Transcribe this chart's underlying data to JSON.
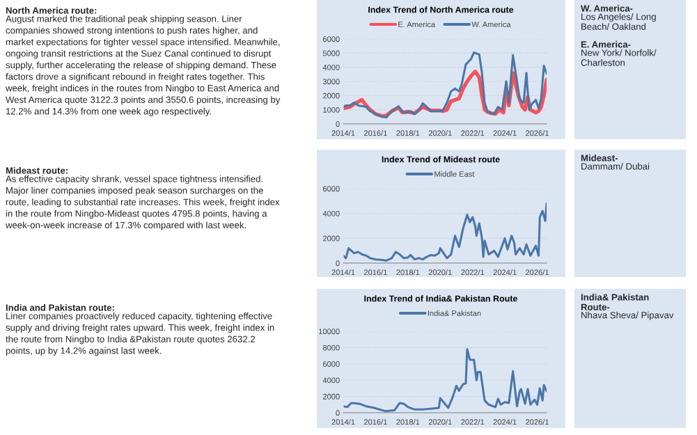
{
  "chart_data": [
    {
      "type": "line",
      "title": "Index Trend of North America route",
      "series": [
        {
          "name": "E. America",
          "color": "#f4525a",
          "x": [
            "2014-01",
            "2014-06",
            "2014-09",
            "2015-03",
            "2015-06",
            "2015-09",
            "2016-01",
            "2016-06",
            "2016-09",
            "2017-01",
            "2017-06",
            "2017-09",
            "2018-01",
            "2018-06",
            "2018-12",
            "2019-06",
            "2019-12",
            "2020-03",
            "2020-06",
            "2020-09",
            "2020-12",
            "2021-03",
            "2021-06",
            "2021-09",
            "2021-12",
            "2022-03",
            "2022-06",
            "2022-08",
            "2022-10",
            "2022-12",
            "2023-03",
            "2023-06",
            "2023-09",
            "2023-12",
            "2024-02",
            "2024-04",
            "2024-07",
            "2024-09",
            "2024-11",
            "2025-02",
            "2025-04",
            "2025-06",
            "2025-08",
            "2025-10",
            "2025-12",
            "2026-02",
            "2026-04",
            "2026-06",
            "2026-08"
          ],
          "values": [
            1100,
            1200,
            1400,
            1700,
            1300,
            1000,
            700,
            550,
            600,
            900,
            1150,
            800,
            850,
            750,
            1200,
            950,
            950,
            900,
            1000,
            1600,
            1700,
            1800,
            2500,
            3000,
            3400,
            3700,
            3300,
            2000,
            1000,
            850,
            750,
            700,
            1000,
            800,
            2500,
            1300,
            3600,
            2800,
            2000,
            1200,
            1000,
            1900,
            1000,
            900,
            800,
            900,
            1200,
            2000,
            3122.3
          ]
        },
        {
          "name": "W. America",
          "color": "#4a76a8",
          "x": [
            "2014-01",
            "2014-03",
            "2014-06",
            "2014-09",
            "2014-12",
            "2015-03",
            "2015-06",
            "2015-09",
            "2015-12",
            "2016-03",
            "2016-06",
            "2016-09",
            "2016-12",
            "2017-03",
            "2017-06",
            "2017-09",
            "2017-12",
            "2018-03",
            "2018-06",
            "2018-09",
            "2018-12",
            "2019-03",
            "2019-06",
            "2019-09",
            "2019-12",
            "2020-03",
            "2020-06",
            "2020-09",
            "2020-12",
            "2021-03",
            "2021-05",
            "2021-08",
            "2021-12",
            "2022-02",
            "2022-06",
            "2022-08",
            "2022-10",
            "2022-12",
            "2023-03",
            "2023-05",
            "2023-08",
            "2023-11",
            "2024-02",
            "2024-04",
            "2024-07",
            "2024-10",
            "2024-12",
            "2025-03",
            "2025-05",
            "2025-07",
            "2025-09",
            "2025-12",
            "2026-02",
            "2026-04",
            "2026-06",
            "2026-08"
          ],
          "values": [
            1200,
            1300,
            1300,
            1500,
            1300,
            1250,
            1200,
            900,
            750,
            600,
            500,
            450,
            800,
            1000,
            1250,
            850,
            800,
            900,
            700,
            950,
            1450,
            1200,
            900,
            900,
            900,
            950,
            1500,
            2300,
            2500,
            2300,
            2800,
            4200,
            4600,
            5050,
            4900,
            3600,
            1500,
            900,
            750,
            700,
            1200,
            1000,
            3000,
            1500,
            4850,
            3000,
            1700,
            1500,
            3600,
            1000,
            1400,
            1700,
            1100,
            1800,
            4100,
            3550.6
          ]
        }
      ],
      "xlim": [
        "2014-01",
        "2026-08"
      ],
      "xticks": [
        {
          "value": "2014-01",
          "label": "2014/1"
        },
        {
          "value": "2016-01",
          "label": "2016/1"
        },
        {
          "value": "2018-01",
          "label": "2018/1"
        },
        {
          "value": "2020-01",
          "label": "2020/1"
        },
        {
          "value": "2022-01",
          "label": "2022/1"
        },
        {
          "value": "2024-01",
          "label": "2024/1"
        },
        {
          "value": "2026-01",
          "label": "2026/1"
        }
      ],
      "ylim": [
        0,
        6000
      ],
      "yticks": [
        0,
        1000,
        2000,
        3000,
        4000,
        5000,
        6000
      ],
      "grid": "y",
      "legend": "top",
      "annotations": [
        "North America route:",
        "August marked the traditional peak shipping season. Liner companies showed strong intentions to push rates higher, and market expectations for tighter vessel space intensified. Meanwhile, ongoing transit restrictions at the Suez Canal continued to disrupt supply, further accelerating the release of shipping demand. These factors drove a significant rebound in freight rates together. This week, freight indices in the routes from Ningbo to East America and West America quote 3122.3 points and 3550.6 points, increasing by 12.2% and 14.3% from one week ago respectively.",
        "W. America-",
        "Los Angeles/ Long Beach/ Oakland",
        "E. America-",
        "New York/ Norfolk/ Charleston"
      ]
    },
    {
      "type": "line",
      "title": "Index Trend of Mideast route",
      "series": [
        {
          "name": "Middle East",
          "color": "#4a76a8",
          "x": [
            "2014-01",
            "2014-03",
            "2014-05",
            "2014-09",
            "2014-12",
            "2015-03",
            "2015-06",
            "2015-09",
            "2016-01",
            "2016-06",
            "2016-09",
            "2017-01",
            "2017-04",
            "2017-07",
            "2017-10",
            "2018-01",
            "2018-03",
            "2018-06",
            "2018-09",
            "2018-12",
            "2019-03",
            "2019-06",
            "2019-09",
            "2019-12",
            "2020-01",
            "2020-06",
            "2020-09",
            "2020-12",
            "2021-03",
            "2021-06",
            "2021-09",
            "2021-11",
            "2022-01",
            "2022-03",
            "2022-04",
            "2022-06",
            "2022-08",
            "2022-09",
            "2022-10",
            "2023-01",
            "2023-05",
            "2023-08",
            "2024-01",
            "2024-03",
            "2024-06",
            "2024-08",
            "2024-09",
            "2024-12",
            "2025-03",
            "2025-05",
            "2025-08",
            "2025-12",
            "2026-02",
            "2026-03",
            "2026-05",
            "2026-07",
            "2026-08"
          ],
          "values": [
            600,
            400,
            1200,
            800,
            900,
            700,
            600,
            400,
            300,
            250,
            200,
            400,
            900,
            700,
            400,
            450,
            650,
            300,
            400,
            300,
            500,
            650,
            600,
            800,
            1200,
            400,
            700,
            2200,
            1300,
            2800,
            3900,
            3300,
            3700,
            3000,
            2200,
            3200,
            2000,
            500,
            1800,
            700,
            1000,
            500,
            2000,
            1100,
            2200,
            1600,
            700,
            1200,
            700,
            1500,
            600,
            1400,
            600,
            3700,
            4200,
            3400,
            4795.8
          ]
        }
      ],
      "xlim": [
        "2014-01",
        "2026-08"
      ],
      "xticks": [
        {
          "value": "2014-01",
          "label": "2014/1"
        },
        {
          "value": "2016-01",
          "label": "2016/1"
        },
        {
          "value": "2018-01",
          "label": "2018/1"
        },
        {
          "value": "2020-01",
          "label": "2020/1"
        },
        {
          "value": "2022-01",
          "label": "2022/1"
        },
        {
          "value": "2024-01",
          "label": "2024/1"
        },
        {
          "value": "2026-01",
          "label": "2026/1"
        }
      ],
      "ylim": [
        0,
        6000
      ],
      "yticks": [
        0,
        2000,
        4000,
        6000
      ],
      "grid": "y",
      "legend": "top",
      "annotations": [
        "Mideast route:",
        "As effective capacity shrank, vessel space tightness intensified. Major liner companies imposed peak season surcharges on the route, leading to substantial rate increases. This week, freight index in the route from Ningbo-Mideast quotes 4795.8 points, having a week-on-week increase of 17.3% compared with last week.",
        "Mideast-",
        "Dammam/ Dubai"
      ]
    },
    {
      "type": "line",
      "title": "Index Trend of India& Pakistan Route",
      "series": [
        {
          "name": "India& Pakistan",
          "color": "#4a76a8",
          "x": [
            "2014-01",
            "2014-04",
            "2014-07",
            "2015-01",
            "2015-06",
            "2015-12",
            "2016-08",
            "2017-03",
            "2017-07",
            "2017-10",
            "2018-01",
            "2018-06",
            "2018-12",
            "2019-06",
            "2019-12",
            "2020-01",
            "2020-07",
            "2020-10",
            "2021-01",
            "2021-03",
            "2021-06",
            "2021-08",
            "2021-09",
            "2021-11",
            "2022-02",
            "2022-04",
            "2022-05",
            "2022-07",
            "2022-10",
            "2023-01",
            "2023-06",
            "2023-08",
            "2023-10",
            "2024-01",
            "2024-04",
            "2024-07",
            "2024-10",
            "2024-12",
            "2025-01",
            "2025-04",
            "2025-06",
            "2025-08",
            "2025-11",
            "2026-01",
            "2026-03",
            "2026-05",
            "2026-06",
            "2026-08"
          ],
          "values": [
            800,
            700,
            1200,
            1100,
            800,
            600,
            200,
            300,
            1200,
            1100,
            700,
            400,
            400,
            500,
            600,
            1800,
            600,
            1800,
            3300,
            2700,
            3500,
            3600,
            7800,
            6500,
            6500,
            4000,
            5000,
            5000,
            1500,
            1000,
            700,
            1700,
            1000,
            1300,
            1200,
            5100,
            800,
            2600,
            2900,
            1100,
            2900,
            1000,
            1600,
            1000,
            3000,
            1500,
            3400,
            2632.2
          ]
        }
      ],
      "xlim": [
        "2014-01",
        "2026-08"
      ],
      "xticks": [
        {
          "value": "2014-01",
          "label": "2014/1"
        },
        {
          "value": "2016-01",
          "label": "2016/1"
        },
        {
          "value": "2018-01",
          "label": "2018/1"
        },
        {
          "value": "2020-01",
          "label": "2020/1"
        },
        {
          "value": "2022-01",
          "label": "2022/1"
        },
        {
          "value": "2024-01",
          "label": "2024/1"
        },
        {
          "value": "2026-01",
          "label": "2026/1"
        }
      ],
      "ylim": [
        0,
        10000
      ],
      "yticks": [
        0,
        2000,
        4000,
        6000,
        8000,
        10000
      ],
      "grid": "y",
      "legend": "top",
      "annotations": [
        "India and Pakistan route:",
        "Liner companies proactively reduced capacity, tightening effective supply and driving freight rates upward. This week, freight index in the route from Ningbo to India &Pakistan route quotes 2632.2 points, up by 14.2% against last week.",
        "India& Pakistan Route-",
        "Nhava Sheva/ Pipavav"
      ]
    }
  ]
}
